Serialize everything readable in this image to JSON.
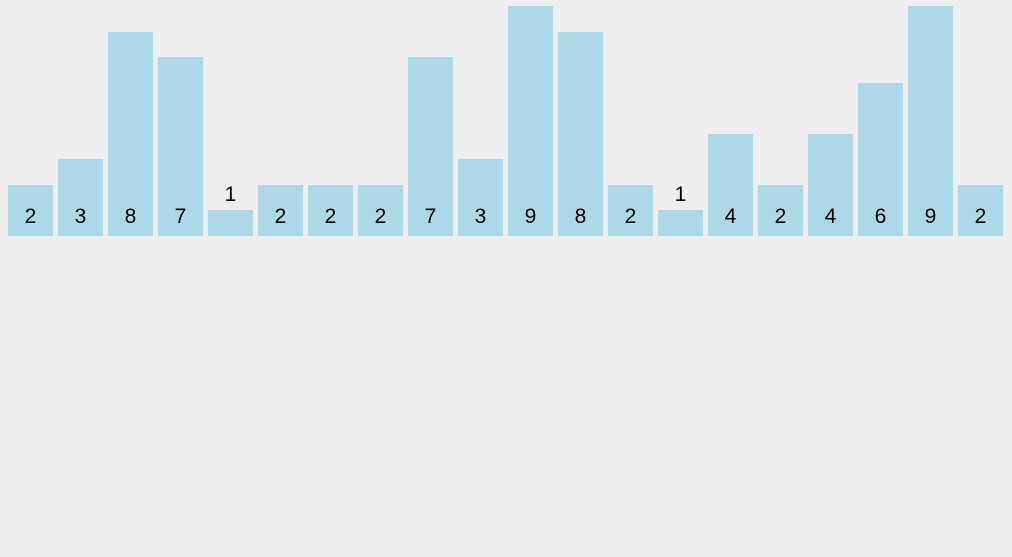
{
  "chart_data": {
    "type": "bar",
    "values": [
      2,
      3,
      8,
      7,
      1,
      2,
      2,
      2,
      7,
      3,
      9,
      8,
      2,
      1,
      4,
      2,
      4,
      6,
      9,
      2
    ],
    "bar_labels": [
      "2",
      "3",
      "8",
      "7",
      "1",
      "2",
      "2",
      "2",
      "7",
      "3",
      "9",
      "8",
      "2",
      "1",
      "4",
      "2",
      "4",
      "6",
      "9",
      "2"
    ],
    "title": "",
    "xlabel": "",
    "ylabel": "",
    "ylim": [
      0,
      9
    ],
    "grid": false,
    "axes_visible": false,
    "legend_position": "none",
    "bar_count": 20,
    "bar_color": "#ADD8E6",
    "background_color": "#EEEEEE",
    "label_color": "#000000",
    "label_placement_note": "value label drawn inside bar near its bottom; drawn above the bar when the bar is too short (value 1)"
  }
}
